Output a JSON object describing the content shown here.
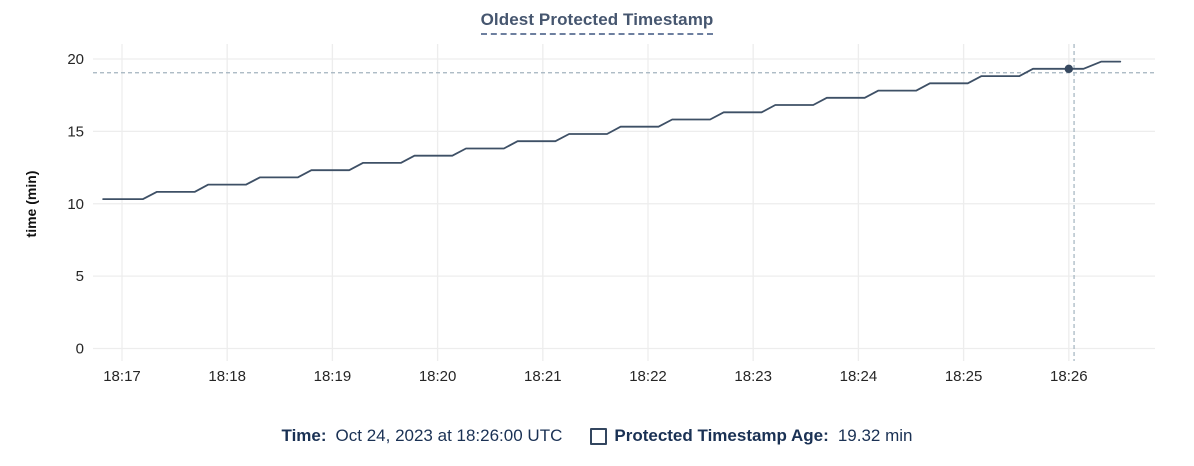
{
  "title": "Oldest Protected Timestamp",
  "legend": {
    "time_label": "Time:",
    "time_value": "Oct 24, 2023 at 18:26:00 UTC",
    "series_label": "Protected Timestamp Age:",
    "series_value": "19.32 min"
  },
  "colors": {
    "line": "#3e5066",
    "dot": "#36485f",
    "grid": "#ededed",
    "crosshair": "#a2b3bf",
    "title_text": "#46566f",
    "title_underline": "#6d7f9f",
    "legend_text": "#1a3154",
    "checkbox_border": "#33465f",
    "tick_text": "#262626"
  },
  "chart_data": {
    "type": "line",
    "title": "Oldest Protected Timestamp",
    "xlabel": "",
    "ylabel": "time (min)",
    "ylim": [
      0,
      20
    ],
    "y_ticks": [
      0,
      5,
      10,
      15,
      20
    ],
    "x_tick_labels": [
      "18:17",
      "18:18",
      "18:19",
      "18:20",
      "18:21",
      "18:22",
      "18:23",
      "18:24",
      "18:25",
      "18:26"
    ],
    "x_tick_positions_min": [
      0,
      1,
      2,
      3,
      4,
      5,
      6,
      7,
      8,
      9
    ],
    "x_range_min_after_1817": [
      -0.28,
      9.82
    ],
    "grid": true,
    "legend_position": "bottom",
    "series": [
      {
        "name": "Protected Timestamp Age",
        "unit": "min",
        "points_min_value": [
          [
            -0.18,
            10.32
          ],
          [
            0.2,
            10.32
          ],
          [
            0.33,
            10.82
          ],
          [
            0.69,
            10.82
          ],
          [
            0.82,
            11.32
          ],
          [
            1.18,
            11.32
          ],
          [
            1.31,
            11.82
          ],
          [
            1.67,
            11.82
          ],
          [
            1.8,
            12.32
          ],
          [
            2.16,
            12.32
          ],
          [
            2.29,
            12.82
          ],
          [
            2.65,
            12.82
          ],
          [
            2.78,
            13.32
          ],
          [
            3.14,
            13.32
          ],
          [
            3.27,
            13.82
          ],
          [
            3.63,
            13.82
          ],
          [
            3.76,
            14.32
          ],
          [
            4.12,
            14.32
          ],
          [
            4.25,
            14.82
          ],
          [
            4.61,
            14.82
          ],
          [
            4.74,
            15.32
          ],
          [
            5.1,
            15.32
          ],
          [
            5.23,
            15.82
          ],
          [
            5.59,
            15.82
          ],
          [
            5.72,
            16.32
          ],
          [
            6.08,
            16.32
          ],
          [
            6.21,
            16.82
          ],
          [
            6.57,
            16.82
          ],
          [
            6.7,
            17.32
          ],
          [
            7.06,
            17.32
          ],
          [
            7.19,
            17.82
          ],
          [
            7.55,
            17.82
          ],
          [
            7.68,
            18.32
          ],
          [
            8.04,
            18.32
          ],
          [
            8.17,
            18.82
          ],
          [
            8.53,
            18.82
          ],
          [
            8.66,
            19.32
          ],
          [
            9.14,
            19.32
          ],
          [
            9.31,
            19.82
          ],
          [
            9.49,
            19.82
          ]
        ]
      }
    ],
    "highlight_point": {
      "x_min": 9.0,
      "value": 19.32
    },
    "crosshair": {
      "x_min": 9.05,
      "value": 19.05
    },
    "hover_readout": {
      "time": "Oct 24, 2023 at 18:26:00 UTC",
      "value": "19.32 min"
    }
  }
}
